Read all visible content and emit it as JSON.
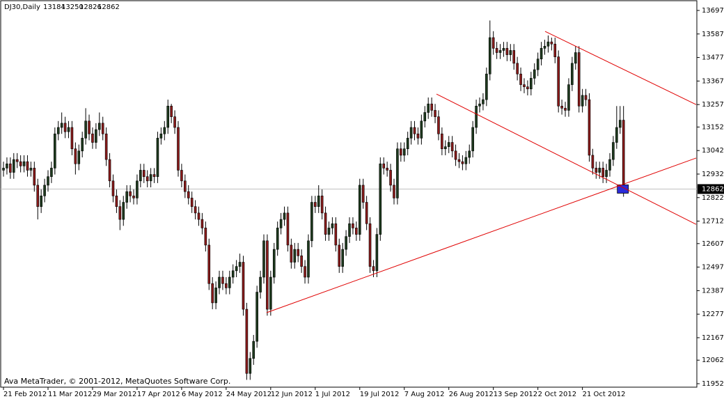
{
  "chart_data": {
    "type": "candlestick",
    "symbol": "DJ30,Daily",
    "footer": "Ava MetaTrader, © 2001-2012, MetaQuotes Software Corp.",
    "up_color": "#1e3a1e",
    "down_color": "#8b1a1a",
    "trendline_color": "#e00000",
    "ylim": [
      11952,
      13697
    ],
    "yticks": [
      13697,
      13587,
      13477,
      13367,
      13257,
      13152,
      13042,
      12932,
      12822,
      12712,
      12607,
      12497,
      12387,
      12277,
      12167,
      12062,
      11952
    ],
    "xlim": [
      -1.02,
      202.2
    ],
    "xticks": [
      {
        "value": 0,
        "label": "21 Feb 2012"
      },
      {
        "value": 13,
        "label": "11 Mar 2012"
      },
      {
        "value": 26,
        "label": "29 Mar 2012"
      },
      {
        "value": 39,
        "label": "17 Apr 2012"
      },
      {
        "value": 52,
        "label": "6 May 2012"
      },
      {
        "value": 65,
        "label": "24 May 2012"
      },
      {
        "value": 78,
        "label": "12 Jun 2012"
      },
      {
        "value": 91,
        "label": "1 Jul 2012"
      },
      {
        "value": 104,
        "label": "19 Jul 2012"
      },
      {
        "value": 117,
        "label": "7 Aug 2012"
      },
      {
        "value": 130,
        "label": "26 Aug 2012"
      },
      {
        "value": 143,
        "label": "13 Sep 2012"
      },
      {
        "value": 156,
        "label": "2 Oct 2012"
      },
      {
        "value": 169,
        "label": "21 Oct 2012"
      }
    ],
    "open": [
      12950,
      12960,
      12980,
      12940,
      13000,
      12990,
      12970,
      12990,
      12950,
      12960,
      12880,
      12780,
      12830,
      12880,
      12920,
      12960,
      13120,
      13150,
      13170,
      13130,
      13150,
      13050,
      12980,
      13040,
      13100,
      13180,
      13120,
      13080,
      13140,
      13170,
      13120,
      13000,
      12900,
      12830,
      12780,
      12720,
      12800,
      12850,
      12830,
      12820,
      12900,
      12950,
      12920,
      12900,
      12930,
      12920,
      13100,
      13120,
      13150,
      13250,
      13200,
      13150,
      12950,
      12900,
      12850,
      12820,
      12780,
      12750,
      12720,
      12680,
      12600,
      12420,
      12330,
      12400,
      12450,
      12420,
      12400,
      12450,
      12480,
      12500,
      12520,
      12300,
      12000,
      12070,
      12150,
      12380,
      12450,
      12620,
      12300,
      12450,
      12580,
      12680,
      12720,
      12750,
      12600,
      12520,
      12580,
      12550,
      12500,
      12450,
      12620,
      12800,
      12780,
      12830,
      12750,
      12650,
      12680,
      12700,
      12600,
      12500,
      12580,
      12640,
      12700,
      12680,
      12650,
      12880,
      12800,
      12700,
      12500,
      12480,
      12650,
      12980,
      12960,
      12950,
      12880,
      12820,
      13050,
      13020,
      13050,
      13100,
      13150,
      13120,
      13100,
      13180,
      13220,
      13260,
      13230,
      13200,
      13120,
      13050,
      13060,
      13080,
      13040,
      13000,
      12990,
      12980,
      13010,
      13040,
      13150,
      13250,
      13260,
      13280,
      13400,
      13570,
      13520,
      13500,
      13510,
      13520,
      13490,
      13510,
      13450,
      13400,
      13350,
      13340,
      13330,
      13380,
      13420,
      13470,
      13520,
      13530,
      13550,
      13540,
      13480,
      13250,
      13240,
      13230,
      13350,
      13450,
      13500,
      13250,
      13300,
      13280,
      13020,
      12960,
      12940,
      12960,
      12920,
      12950,
      13000,
      13080,
      13150,
      13184
    ],
    "high": [
      12990,
      13010,
      13010,
      13030,
      13030,
      13020,
      13020,
      13020,
      12990,
      12990,
      12910,
      12860,
      12910,
      12950,
      12990,
      13150,
      13180,
      13220,
      13200,
      13180,
      13180,
      13080,
      13070,
      13130,
      13240,
      13210,
      13150,
      13170,
      13220,
      13200,
      13150,
      13030,
      12930,
      12860,
      12810,
      12830,
      12880,
      12880,
      12860,
      12930,
      12980,
      12980,
      12950,
      12960,
      12960,
      13130,
      13150,
      13180,
      13280,
      13260,
      13230,
      13180,
      12980,
      12930,
      12880,
      12850,
      12810,
      12780,
      12750,
      12710,
      12630,
      12450,
      12430,
      12480,
      12480,
      12450,
      12480,
      12510,
      12530,
      12560,
      12550,
      12330,
      12100,
      12180,
      12410,
      12480,
      12650,
      12650,
      12480,
      12610,
      12710,
      12750,
      12780,
      12780,
      12630,
      12610,
      12610,
      12580,
      12530,
      12650,
      12830,
      12830,
      12880,
      12860,
      12780,
      12710,
      12730,
      12730,
      12630,
      12610,
      12670,
      12730,
      12730,
      12710,
      12910,
      12910,
      12830,
      12730,
      12530,
      12680,
      13010,
      13010,
      12990,
      12980,
      12910,
      13080,
      13080,
      13080,
      13130,
      13180,
      13180,
      13150,
      13210,
      13250,
      13290,
      13290,
      13260,
      13230,
      13150,
      13090,
      13110,
      13110,
      13070,
      13030,
      13020,
      13040,
      13070,
      13180,
      13280,
      13290,
      13310,
      13430,
      13650,
      13600,
      13550,
      13540,
      13550,
      13550,
      13540,
      13540,
      13480,
      13430,
      13380,
      13370,
      13410,
      13450,
      13500,
      13550,
      13560,
      13580,
      13570,
      13570,
      13510,
      13280,
      13270,
      13380,
      13480,
      13530,
      13530,
      13330,
      13330,
      13310,
      13050,
      12990,
      12990,
      12990,
      12980,
      13030,
      13110,
      13250,
      13250,
      13250
    ],
    "low": [
      12920,
      12930,
      12910,
      12910,
      12960,
      12940,
      12940,
      12920,
      12920,
      12850,
      12720,
      12750,
      12800,
      12850,
      12890,
      12930,
      13090,
      13120,
      13100,
      13100,
      13020,
      12930,
      12950,
      13010,
      13070,
      13090,
      13050,
      13050,
      13110,
      13090,
      12970,
      12870,
      12800,
      12750,
      12670,
      12690,
      12770,
      12800,
      12790,
      12790,
      12870,
      12890,
      12870,
      12870,
      12890,
      12890,
      13070,
      13090,
      13120,
      13170,
      13120,
      12920,
      12870,
      12820,
      12790,
      12750,
      12720,
      12690,
      12650,
      12570,
      12390,
      12300,
      12300,
      12370,
      12390,
      12370,
      12370,
      12420,
      12450,
      12470,
      12270,
      11970,
      11970,
      12040,
      12120,
      12350,
      12420,
      12270,
      12270,
      12420,
      12550,
      12650,
      12690,
      12570,
      12490,
      12490,
      12520,
      12470,
      12420,
      12420,
      12590,
      12750,
      12750,
      12720,
      12620,
      12620,
      12650,
      12570,
      12470,
      12470,
      12550,
      12610,
      12650,
      12620,
      12620,
      12770,
      12670,
      12470,
      12450,
      12450,
      12620,
      12930,
      12920,
      12850,
      12790,
      12790,
      12990,
      12990,
      13020,
      13070,
      13090,
      13070,
      13070,
      13150,
      13190,
      13200,
      13170,
      13090,
      13020,
      13020,
      13030,
      13010,
      12970,
      12960,
      12950,
      12950,
      12980,
      13010,
      13120,
      13220,
      13230,
      13250,
      13370,
      13490,
      13470,
      13470,
      13480,
      13460,
      13460,
      13420,
      13370,
      13320,
      13310,
      13300,
      13300,
      13350,
      13390,
      13440,
      13490,
      13500,
      13510,
      13450,
      13220,
      13210,
      13200,
      13200,
      13320,
      13420,
      13220,
      13220,
      13250,
      12990,
      12930,
      12910,
      12910,
      12890,
      12890,
      12920,
      12970,
      13050,
      13120,
      12826
    ],
    "close": [
      12960,
      12980,
      12940,
      13000,
      12990,
      12970,
      12990,
      12950,
      12960,
      12880,
      12780,
      12830,
      12880,
      12920,
      12960,
      13120,
      13150,
      13170,
      13130,
      13150,
      13050,
      12980,
      13040,
      13100,
      13180,
      13120,
      13080,
      13140,
      13170,
      13120,
      13000,
      12900,
      12830,
      12780,
      12720,
      12800,
      12850,
      12830,
      12820,
      12900,
      12950,
      12920,
      12900,
      12930,
      12920,
      13100,
      13120,
      13150,
      13250,
      13200,
      13150,
      12950,
      12900,
      12850,
      12820,
      12780,
      12750,
      12720,
      12680,
      12600,
      12420,
      12330,
      12400,
      12450,
      12420,
      12400,
      12450,
      12480,
      12500,
      12520,
      12300,
      12000,
      12070,
      12150,
      12380,
      12450,
      12620,
      12300,
      12450,
      12580,
      12680,
      12720,
      12750,
      12600,
      12520,
      12580,
      12550,
      12500,
      12450,
      12620,
      12800,
      12780,
      12830,
      12750,
      12650,
      12680,
      12700,
      12600,
      12500,
      12580,
      12640,
      12700,
      12680,
      12650,
      12880,
      12800,
      12700,
      12500,
      12480,
      12650,
      12980,
      12960,
      12950,
      12880,
      12820,
      13050,
      13020,
      13050,
      13100,
      13150,
      13120,
      13100,
      13180,
      13220,
      13260,
      13230,
      13200,
      13120,
      13050,
      13060,
      13080,
      13040,
      13000,
      12990,
      12980,
      13010,
      13040,
      13150,
      13250,
      13260,
      13280,
      13400,
      13570,
      13520,
      13500,
      13510,
      13520,
      13490,
      13510,
      13450,
      13400,
      13350,
      13340,
      13330,
      13380,
      13420,
      13470,
      13520,
      13530,
      13550,
      13540,
      13480,
      13250,
      13240,
      13230,
      13350,
      13450,
      13500,
      13250,
      13300,
      13280,
      13020,
      12960,
      12940,
      12960,
      12920,
      12950,
      13000,
      13080,
      13150,
      13184,
      12862
    ],
    "trendlines": [
      {
        "x": [
          76.8,
          202.2
        ],
        "y": [
          12284,
          13007
        ]
      },
      {
        "x": [
          126.4,
          202.2
        ],
        "y": [
          13306,
          12697
        ]
      },
      {
        "x": [
          158.1,
          202.2
        ],
        "y": [
          13599,
          13257
        ]
      }
    ]
  }
}
